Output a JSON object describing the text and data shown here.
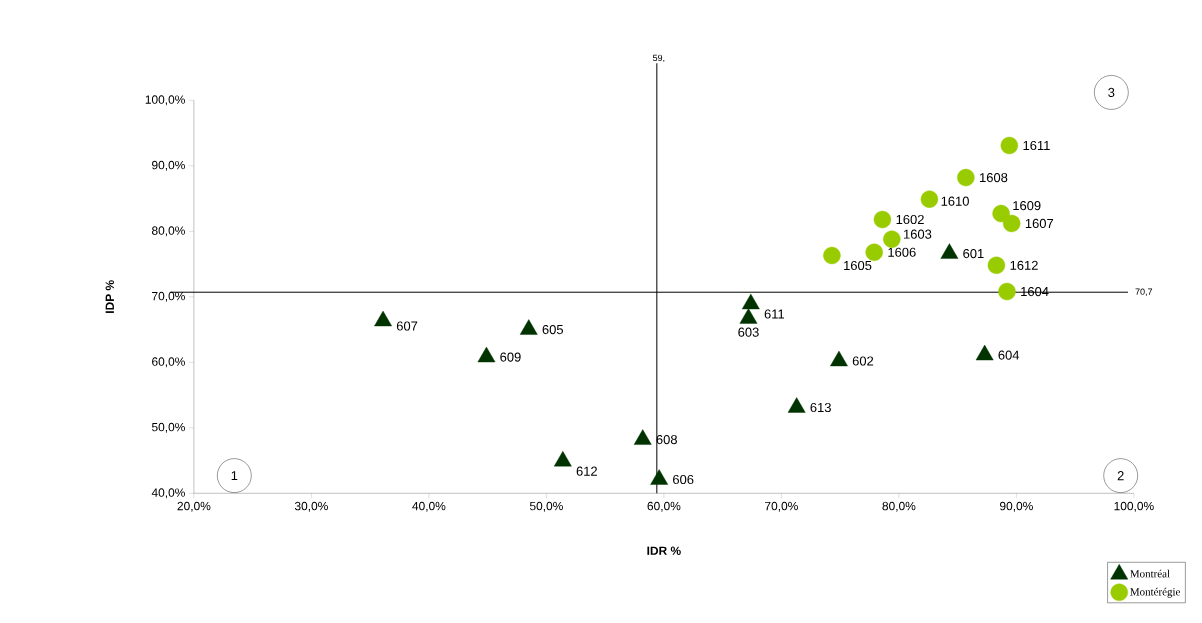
{
  "chart_data": {
    "type": "scatter",
    "xlabel": "IDR %",
    "ylabel": "IDP %",
    "xlim": [
      20,
      100
    ],
    "ylim": [
      40,
      100
    ],
    "xticks": [
      {
        "value": 20,
        "label": "20,0%"
      },
      {
        "value": 30,
        "label": "30,0%"
      },
      {
        "value": 40,
        "label": "40,0%"
      },
      {
        "value": 50,
        "label": "50,0%"
      },
      {
        "value": 60,
        "label": "60,0%"
      },
      {
        "value": 70,
        "label": "70,0%"
      },
      {
        "value": 80,
        "label": "80,0%"
      },
      {
        "value": 90,
        "label": "90,0%"
      },
      {
        "value": 100,
        "label": "100,0%"
      }
    ],
    "yticks": [
      {
        "value": 40,
        "label": "40,0%"
      },
      {
        "value": 50,
        "label": "50,0%"
      },
      {
        "value": 60,
        "label": "60,0%"
      },
      {
        "value": 70,
        "label": "70,0%"
      },
      {
        "value": 80,
        "label": "80,0%"
      },
      {
        "value": 90,
        "label": "90,0%"
      },
      {
        "value": 100,
        "label": "100,0%"
      }
    ],
    "grid": false,
    "legend": "bottom right",
    "series": [
      {
        "name": "Montréal",
        "color": "#003300",
        "marker": "triangle",
        "x": [
          84.3,
          74.9,
          67.2,
          87.3,
          48.5,
          59.6,
          36.1,
          58.2,
          44.9,
          67.4,
          51.4,
          71.3
        ],
        "values": [
          76.6,
          60.2,
          66.7,
          61.1,
          65.0,
          42.1,
          66.3,
          48.2,
          60.8,
          68.9,
          44.9,
          53.1
        ]
      },
      {
        "name": "Montérégie",
        "color": "#99cc00",
        "marker": "circle",
        "x": [
          78.6,
          79.4,
          89.2,
          74.3,
          77.9,
          89.6,
          85.7,
          88.7,
          82.6,
          89.4,
          88.3
        ],
        "values": [
          81.8,
          78.8,
          70.8,
          76.3,
          76.8,
          81.2,
          88.2,
          82.7,
          84.9,
          93.1,
          74.8
        ]
      }
    ],
    "ref_lines": [
      {
        "axis": "x",
        "value": 59.4,
        "label": "59,",
        "color": "#000000"
      },
      {
        "axis": "y",
        "value": 70.7,
        "label": "70,7",
        "color": "#000000"
      }
    ],
    "annotations": [
      {
        "text": "601",
        "x": 84.3,
        "y": 76.6
      },
      {
        "text": "602",
        "x": 74.9,
        "y": 60.2
      },
      {
        "text": "603",
        "x": 67.2,
        "y": 66.7
      },
      {
        "text": "604",
        "x": 87.3,
        "y": 61.1
      },
      {
        "text": "605",
        "x": 48.5,
        "y": 65.0
      },
      {
        "text": "606",
        "x": 59.6,
        "y": 42.1
      },
      {
        "text": "607",
        "x": 36.1,
        "y": 66.3
      },
      {
        "text": "608",
        "x": 58.2,
        "y": 48.2
      },
      {
        "text": "609",
        "x": 44.9,
        "y": 60.8
      },
      {
        "text": "611",
        "x": 67.4,
        "y": 68.9
      },
      {
        "text": "612",
        "x": 51.4,
        "y": 44.9
      },
      {
        "text": "613",
        "x": 71.3,
        "y": 53.1
      },
      {
        "text": "1602",
        "x": 78.6,
        "y": 81.8
      },
      {
        "text": "1603",
        "x": 79.4,
        "y": 78.8
      },
      {
        "text": "1604",
        "x": 89.2,
        "y": 70.8
      },
      {
        "text": "1605",
        "x": 74.3,
        "y": 76.3
      },
      {
        "text": "1606",
        "x": 77.9,
        "y": 76.8
      },
      {
        "text": "1607",
        "x": 89.6,
        "y": 81.2
      },
      {
        "text": "1608",
        "x": 85.7,
        "y": 88.2
      },
      {
        "text": "1609",
        "x": 88.7,
        "y": 82.7
      },
      {
        "text": "1610",
        "x": 82.6,
        "y": 84.9
      },
      {
        "text": "1611",
        "x": 89.4,
        "y": 93.1
      },
      {
        "text": "1612",
        "x": 88.3,
        "y": 74.8
      },
      "1",
      "2",
      "3"
    ]
  }
}
